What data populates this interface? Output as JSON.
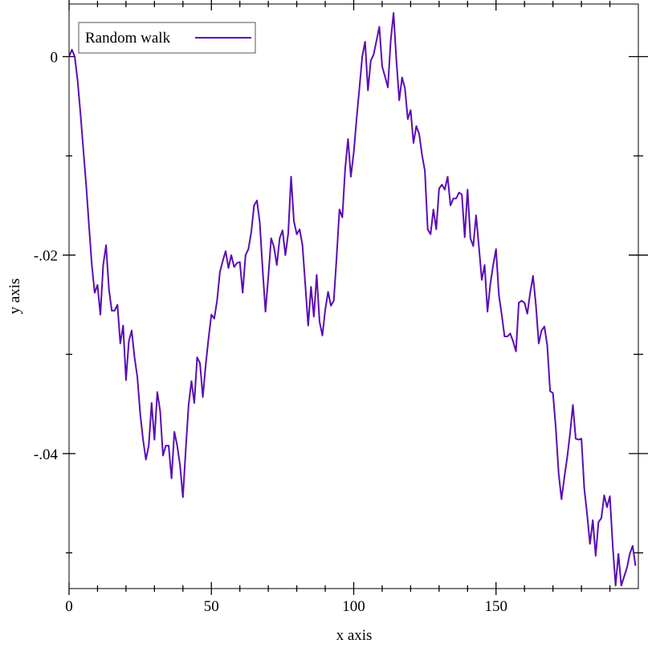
{
  "chart_data": {
    "type": "line",
    "xlabel": "x axis",
    "ylabel": "y axis",
    "legend": "top-left",
    "x": [
      0,
      1,
      2,
      3,
      4,
      5,
      6,
      7,
      8,
      9,
      10,
      11,
      12,
      13,
      14,
      15,
      16,
      17,
      18,
      19,
      20,
      21,
      22,
      23,
      24,
      25,
      26,
      27,
      28,
      29,
      30,
      31,
      32,
      33,
      34,
      35,
      36,
      37,
      38,
      39,
      40,
      41,
      42,
      43,
      44,
      45,
      46,
      47,
      48,
      49,
      50,
      51,
      52,
      53,
      54,
      55,
      56,
      57,
      58,
      59,
      60,
      61,
      62,
      63,
      64,
      65,
      66,
      67,
      68,
      69,
      70,
      71,
      72,
      73,
      74,
      75,
      76,
      77,
      78,
      79,
      80,
      81,
      82,
      83,
      84,
      85,
      86,
      87,
      88,
      89,
      90,
      91,
      92,
      93,
      94,
      95,
      96,
      97,
      98,
      99,
      100,
      101,
      102,
      103,
      104,
      105,
      106,
      107,
      108,
      109,
      110,
      111,
      112,
      113,
      114,
      115,
      116,
      117,
      118,
      119,
      120,
      121,
      122,
      123,
      124,
      125,
      126,
      127,
      128,
      129,
      130,
      131,
      132,
      133,
      134,
      135,
      136,
      137,
      138,
      139,
      140,
      141,
      142,
      143,
      144,
      145,
      146,
      147,
      148,
      149,
      150,
      151,
      152,
      153,
      154,
      155,
      156,
      157,
      158,
      159,
      160,
      161,
      162,
      163,
      164,
      165,
      166,
      167,
      168,
      169,
      170,
      171,
      172,
      173,
      174,
      175,
      176,
      177,
      178,
      179,
      180,
      181,
      182,
      183,
      184,
      185,
      186,
      187,
      188,
      189,
      190,
      191,
      192,
      193,
      194,
      195,
      196,
      197,
      198,
      199
    ],
    "series": [
      {
        "name": "Random walk",
        "color": "#5a0cb4",
        "values": [
          0,
          0.0007,
          0,
          -0.0024,
          -0.0057,
          -0.0093,
          -0.0129,
          -0.017,
          -0.021,
          -0.0238,
          -0.023,
          -0.026,
          -0.021,
          -0.019,
          -0.0234,
          -0.0256,
          -0.0256,
          -0.025,
          -0.0289,
          -0.0271,
          -0.0326,
          -0.0287,
          -0.0276,
          -0.0303,
          -0.0323,
          -0.036,
          -0.0386,
          -0.0406,
          -0.0392,
          -0.0349,
          -0.0386,
          -0.0338,
          -0.0357,
          -0.0402,
          -0.0392,
          -0.0392,
          -0.0425,
          -0.0378,
          -0.0392,
          -0.0412,
          -0.0444,
          -0.0396,
          -0.0351,
          -0.0327,
          -0.0349,
          -0.0303,
          -0.0309,
          -0.0343,
          -0.0311,
          -0.0284,
          -0.026,
          -0.0264,
          -0.0246,
          -0.0217,
          -0.0206,
          -0.0196,
          -0.0213,
          -0.02,
          -0.0212,
          -0.0208,
          -0.0207,
          -0.0238,
          -0.02,
          -0.0194,
          -0.0177,
          -0.015,
          -0.0145,
          -0.0167,
          -0.0214,
          -0.0257,
          -0.0222,
          -0.0183,
          -0.0192,
          -0.021,
          -0.0183,
          -0.0175,
          -0.02,
          -0.0178,
          -0.0121,
          -0.0166,
          -0.0179,
          -0.0174,
          -0.019,
          -0.023,
          -0.0271,
          -0.0232,
          -0.0262,
          -0.022,
          -0.0267,
          -0.0281,
          -0.0255,
          -0.0237,
          -0.0251,
          -0.0246,
          -0.0202,
          -0.0154,
          -0.0162,
          -0.0113,
          -0.0083,
          -0.0121,
          -0.0097,
          -0.0063,
          -0.0032,
          0,
          0.0015,
          -0.0034,
          -0.0004,
          0.0002,
          0.0016,
          0.003,
          -0.001,
          -0.002,
          -0.0031,
          0.0016,
          0.0044,
          -0.0004,
          -0.0044,
          -0.0021,
          -0.0032,
          -0.0063,
          -0.0054,
          -0.0087,
          -0.007,
          -0.0078,
          -0.0099,
          -0.0115,
          -0.0174,
          -0.0179,
          -0.0154,
          -0.0174,
          -0.0133,
          -0.0129,
          -0.0134,
          -0.0121,
          -0.015,
          -0.0143,
          -0.0143,
          -0.0137,
          -0.0139,
          -0.0182,
          -0.0134,
          -0.0183,
          -0.0191,
          -0.016,
          -0.0192,
          -0.0225,
          -0.021,
          -0.0257,
          -0.0229,
          -0.021,
          -0.0194,
          -0.024,
          -0.026,
          -0.0282,
          -0.0282,
          -0.0279,
          -0.0287,
          -0.0297,
          -0.0248,
          -0.0246,
          -0.0248,
          -0.0259,
          -0.0238,
          -0.0221,
          -0.025,
          -0.0289,
          -0.0276,
          -0.0272,
          -0.0291,
          -0.0337,
          -0.0339,
          -0.0374,
          -0.042,
          -0.0446,
          -0.0424,
          -0.0404,
          -0.038,
          -0.0351,
          -0.0385,
          -0.0386,
          -0.0385,
          -0.0435,
          -0.0461,
          -0.0491,
          -0.0467,
          -0.0503,
          -0.0469,
          -0.0465,
          -0.0442,
          -0.0454,
          -0.0443,
          -0.0493,
          -0.0533,
          -0.0501,
          -0.0533,
          -0.0524,
          -0.0515,
          -0.0501,
          -0.0493,
          -0.0513
        ]
      }
    ],
    "xlim": [
      0,
      200
    ],
    "xticks": [
      0,
      50,
      100,
      150
    ],
    "xminorticks": [
      10,
      20,
      30,
      40,
      60,
      70,
      80,
      90,
      110,
      120,
      130,
      140,
      160,
      170,
      180,
      190
    ],
    "ylim": [
      -0.0536,
      0.0053
    ],
    "yticks": [
      0,
      {
        "value": -0.02,
        "label": "-.02"
      },
      {
        "value": -0.04,
        "label": "-.04"
      }
    ],
    "yminorticks": [
      -0.01,
      -0.03,
      -0.05
    ],
    "grid": false
  }
}
